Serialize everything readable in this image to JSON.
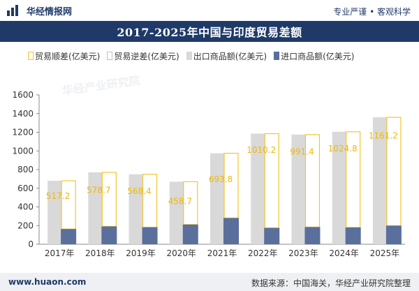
{
  "header": {
    "brand": "华经情报网",
    "tagline": "专业严谨 • 客观科学"
  },
  "title": "2017-2025年中国与印度贸易差额",
  "legend": [
    {
      "label": "贸易顺差(亿美元)",
      "color": "#f4c531",
      "style": "outline"
    },
    {
      "label": "贸易逆差(亿美元)",
      "color": "#bfbfbf",
      "style": "outline"
    },
    {
      "label": "出口商品额(亿美元)",
      "color": "#d9d9d9",
      "style": "solid"
    },
    {
      "label": "进口商品额(亿美元)",
      "color": "#5a6f9c",
      "style": "solid"
    }
  ],
  "footer": {
    "website": "www.huaon.com",
    "source": "数据来源：中国海关，华经产业研究院整理"
  },
  "watermark": "华经产业研究院",
  "chart_data": {
    "type": "bar",
    "categories": [
      "2017年",
      "2018年",
      "2019年",
      "2020年",
      "2021年",
      "2022年",
      "2023年",
      "2024年",
      "2025年"
    ],
    "series": [
      {
        "name": "贸易顺差(亿美元)",
        "values": [
          517.2,
          578.7,
          568.4,
          458.7,
          693.8,
          1010.2,
          991.4,
          1024.8,
          1161.2
        ]
      },
      {
        "name": "出口商品额(亿美元)",
        "values": [
          680,
          770,
          750,
          670,
          975,
          1185,
          1175,
          1205,
          1360
        ]
      },
      {
        "name": "进口商品额(亿美元)",
        "values": [
          163,
          191,
          182,
          211,
          281,
          175,
          184,
          180,
          199
        ]
      }
    ],
    "ylim": [
      0,
      1600
    ],
    "yticks": [
      0,
      200,
      400,
      600,
      800,
      1000,
      1200,
      1400,
      1600
    ],
    "colors": {
      "surplus_outline": "#f4c531",
      "export": "#d9d9d9",
      "import": "#5a6f9c",
      "label": "#f0b800"
    }
  }
}
